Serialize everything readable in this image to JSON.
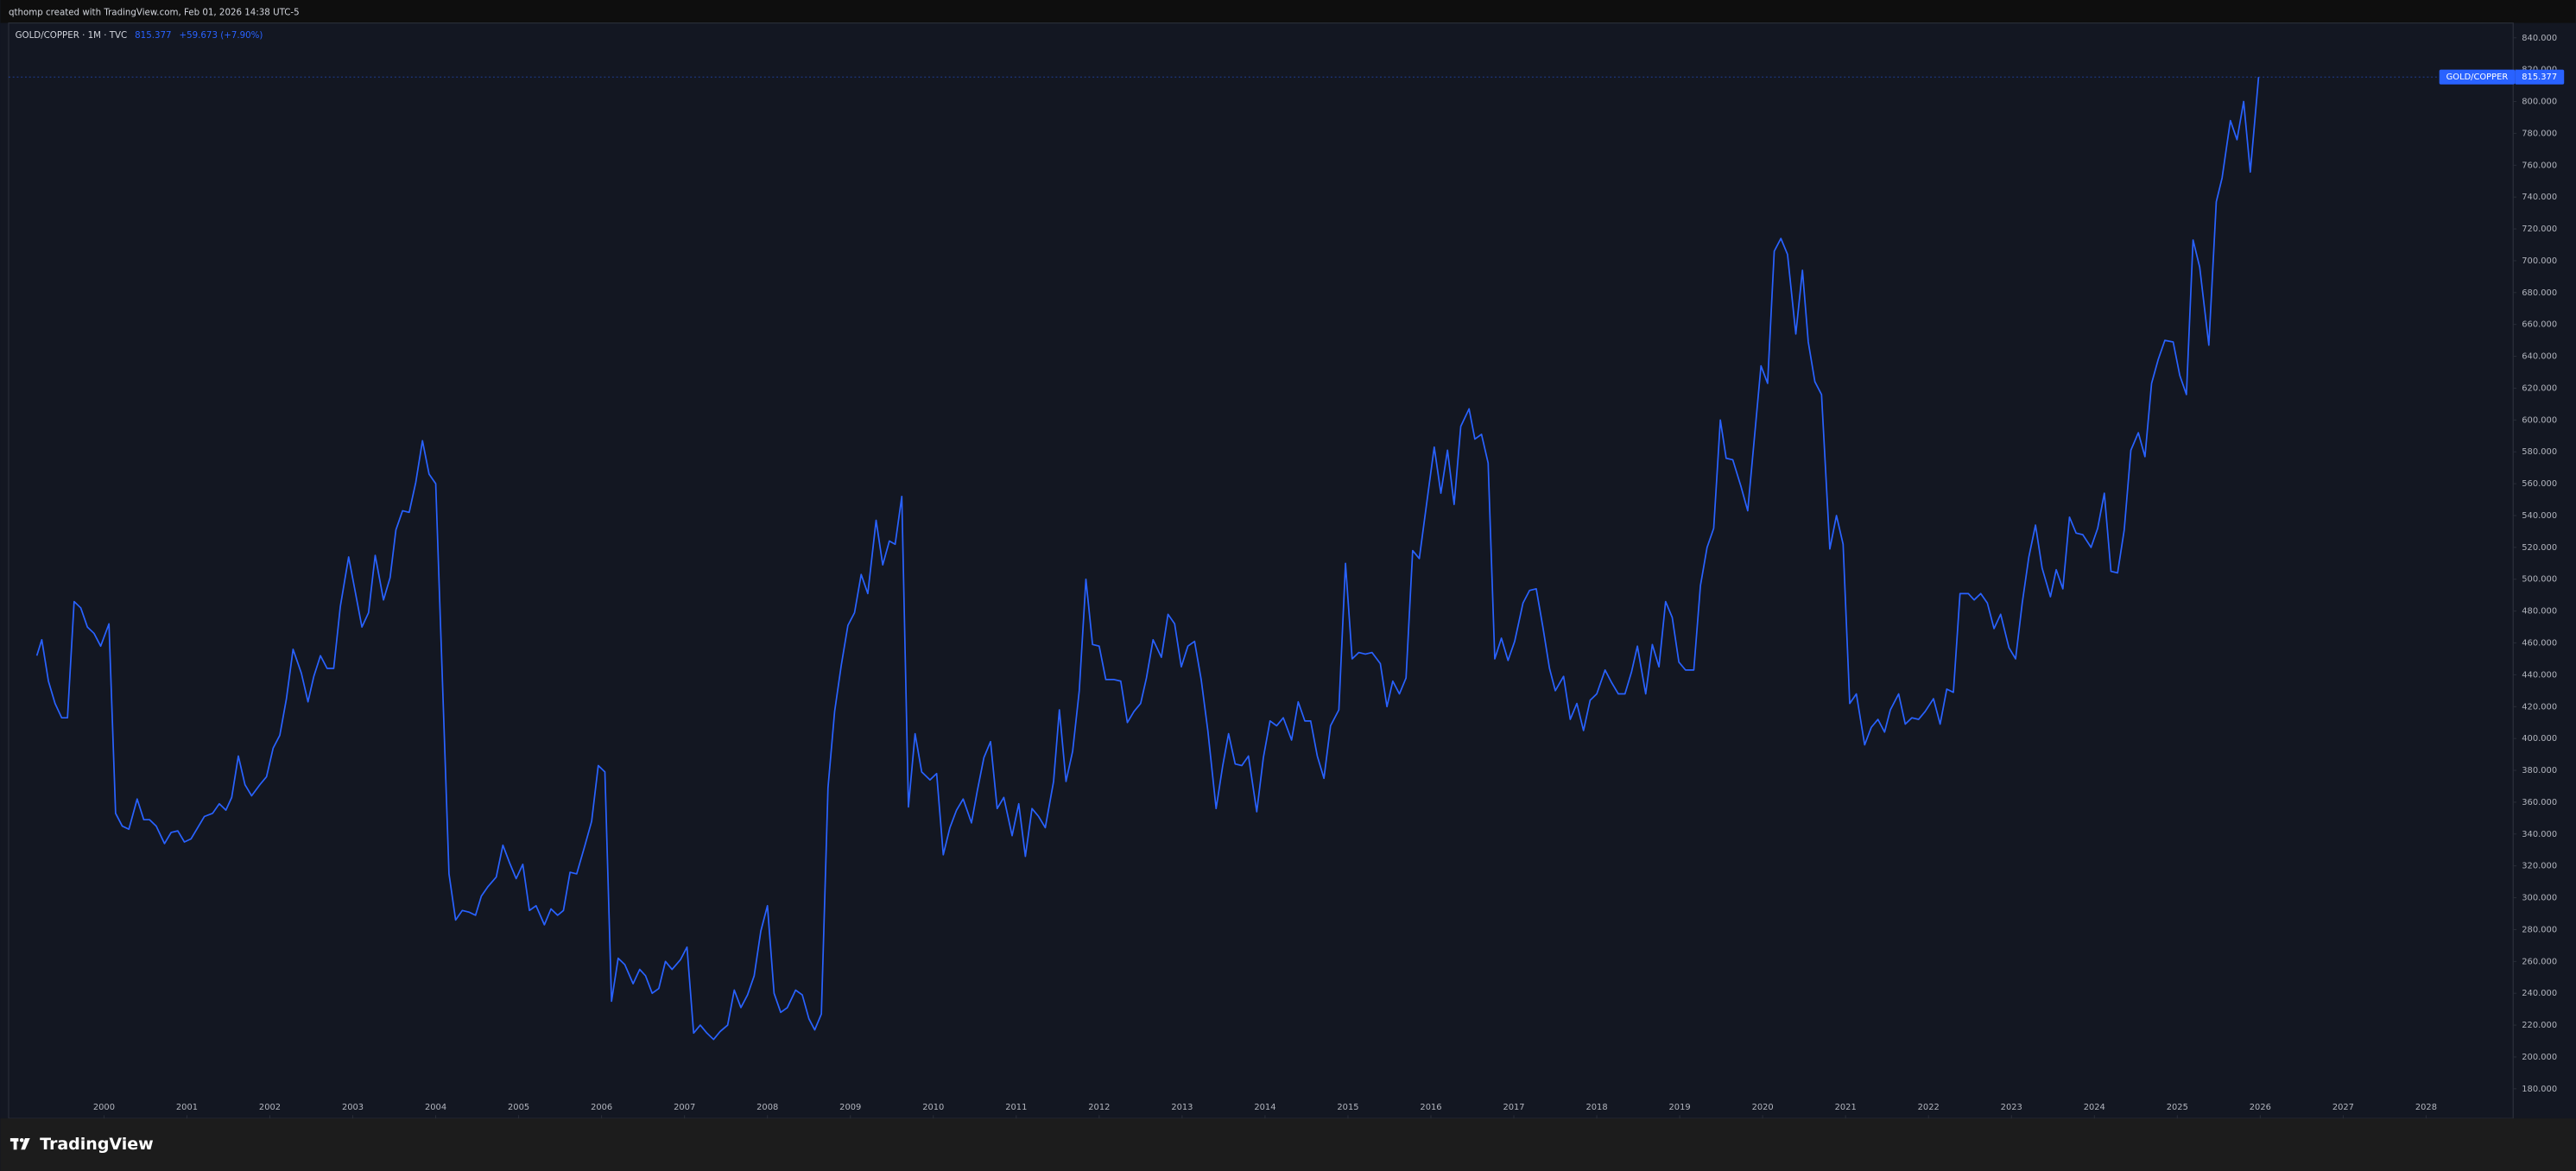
{
  "header": {
    "caption": "qthomp created with TradingView.com, Feb 01, 2026 14:38 UTC-5"
  },
  "legend": {
    "symbol": "GOLD/COPPER · 1M · TVC",
    "last": "815.377",
    "change": "+59.673 (+7.90%)"
  },
  "footer": {
    "brand": "TradingView"
  },
  "chart_data": {
    "type": "line",
    "grid": false,
    "xlim": [
      1998.85,
      2029.05
    ],
    "ylim": [
      161.4,
      849.3
    ],
    "xticks": [
      2000,
      2001,
      2002,
      2003,
      2004,
      2005,
      2006,
      2007,
      2008,
      2009,
      2010,
      2011,
      2012,
      2013,
      2014,
      2015,
      2016,
      2017,
      2018,
      2019,
      2020,
      2021,
      2022,
      2023,
      2024,
      2025,
      2026,
      2027,
      2028
    ],
    "yticks": [
      {
        "value": 180,
        "label": "180.000"
      },
      {
        "value": 200,
        "label": "200.000"
      },
      {
        "value": 220,
        "label": "220.000"
      },
      {
        "value": 240,
        "label": "240.000"
      },
      {
        "value": 260,
        "label": "260.000"
      },
      {
        "value": 280,
        "label": "280.000"
      },
      {
        "value": 300,
        "label": "300.000"
      },
      {
        "value": 320,
        "label": "320.000"
      },
      {
        "value": 340,
        "label": "340.000"
      },
      {
        "value": 360,
        "label": "360.000"
      },
      {
        "value": 380,
        "label": "380.000"
      },
      {
        "value": 400,
        "label": "400.000"
      },
      {
        "value": 420,
        "label": "420.000"
      },
      {
        "value": 440,
        "label": "440.000"
      },
      {
        "value": 460,
        "label": "460.000"
      },
      {
        "value": 480,
        "label": "480.000"
      },
      {
        "value": 500,
        "label": "500.000"
      },
      {
        "value": 520,
        "label": "520.000"
      },
      {
        "value": 540,
        "label": "540.000"
      },
      {
        "value": 560,
        "label": "560.000"
      },
      {
        "value": 580,
        "label": "580.000"
      },
      {
        "value": 600,
        "label": "600.000"
      },
      {
        "value": 620,
        "label": "620.000"
      },
      {
        "value": 640,
        "label": "640.000"
      },
      {
        "value": 660,
        "label": "660.000"
      },
      {
        "value": 680,
        "label": "680.000"
      },
      {
        "value": 700,
        "label": "700.000"
      },
      {
        "value": 720,
        "label": "720.000"
      },
      {
        "value": 740,
        "label": "740.000"
      },
      {
        "value": 760,
        "label": "760.000"
      },
      {
        "value": 780,
        "label": "780.000"
      },
      {
        "value": 800,
        "label": "800.000"
      },
      {
        "value": 820,
        "label": "820.000"
      },
      {
        "value": 840,
        "label": "840.000"
      }
    ],
    "x": [
      1999.19,
      1999.25,
      1999.33,
      1999.41,
      1999.49,
      1999.56,
      1999.64,
      1999.72,
      1999.8,
      1999.88,
      1999.96,
      2000.06,
      2000.14,
      2000.22,
      2000.3,
      2000.4,
      2000.48,
      2000.55,
      2000.63,
      2000.73,
      2000.81,
      2000.89,
      2000.97,
      2001.05,
      2001.13,
      2001.21,
      2001.31,
      2001.39,
      2001.47,
      2001.54,
      2001.62,
      2001.7,
      2001.78,
      2001.88,
      2001.96,
      2002.04,
      2002.12,
      2002.2,
      2002.28,
      2002.38,
      2002.46,
      2002.53,
      2002.61,
      2002.69,
      2002.77,
      2002.85,
      2002.95,
      2003.03,
      2003.11,
      2003.19,
      2003.27,
      2003.37,
      2003.45,
      2003.52,
      2003.6,
      2003.68,
      2003.76,
      2003.84,
      2003.92,
      2004.0,
      2004.16,
      2004.24,
      2004.32,
      2004.4,
      2004.48,
      2004.55,
      2004.63,
      2004.73,
      2004.81,
      2004.89,
      2004.97,
      2005.05,
      2005.13,
      2005.21,
      2005.31,
      2005.39,
      2005.47,
      2005.54,
      2005.62,
      2005.7,
      2005.8,
      2005.88,
      2005.96,
      2006.04,
      2006.12,
      2006.2,
      2006.28,
      2006.38,
      2006.46,
      2006.53,
      2006.61,
      2006.69,
      2006.77,
      2006.85,
      2006.95,
      2007.03,
      2007.11,
      2007.19,
      2007.27,
      2007.35,
      2007.43,
      2007.52,
      2007.6,
      2007.68,
      2007.76,
      2007.84,
      2007.92,
      2008.0,
      2008.08,
      2008.16,
      2008.24,
      2008.34,
      2008.42,
      2008.5,
      2008.57,
      2008.65,
      2008.73,
      2008.81,
      2008.89,
      2008.97,
      2009.05,
      2009.13,
      2009.21,
      2009.31,
      2009.39,
      2009.47,
      2009.54,
      2009.62,
      2009.7,
      2009.78,
      2009.86,
      2009.96,
      2010.04,
      2010.12,
      2010.2,
      2010.28,
      2010.36,
      2010.46,
      2010.53,
      2010.61,
      2010.69,
      2010.77,
      2010.85,
      2010.95,
      2011.03,
      2011.11,
      2011.19,
      2011.27,
      2011.35,
      2011.45,
      2011.52,
      2011.6,
      2011.68,
      2011.76,
      2011.84,
      2011.92,
      2012.0,
      2012.08,
      2012.18,
      2012.26,
      2012.34,
      2012.42,
      2012.5,
      2012.57,
      2012.65,
      2012.75,
      2012.83,
      2012.91,
      2012.99,
      2013.07,
      2013.15,
      2013.23,
      2013.31,
      2013.41,
      2013.49,
      2013.56,
      2013.64,
      2013.72,
      2013.8,
      2013.9,
      2013.98,
      2014.06,
      2014.14,
      2014.22,
      2014.32,
      2014.4,
      2014.48,
      2014.55,
      2014.63,
      2014.71,
      2014.79,
      2014.89,
      2014.97,
      2015.05,
      2015.13,
      2015.21,
      2015.29,
      2015.39,
      2015.47,
      2015.54,
      2015.62,
      2015.7,
      2015.78,
      2015.86,
      2015.96,
      2016.04,
      2016.12,
      2016.2,
      2016.28,
      2016.36,
      2016.46,
      2016.53,
      2016.61,
      2016.69,
      2016.77,
      2016.85,
      2016.93,
      2017.01,
      2017.11,
      2017.19,
      2017.27,
      2017.35,
      2017.43,
      2017.5,
      2017.6,
      2017.68,
      2017.76,
      2017.84,
      2017.92,
      2018.0,
      2018.1,
      2018.18,
      2018.26,
      2018.34,
      2018.42,
      2018.49,
      2018.59,
      2018.67,
      2018.75,
      2018.83,
      2018.91,
      2018.99,
      2019.07,
      2019.17,
      2019.25,
      2019.33,
      2019.41,
      2019.49,
      2019.56,
      2019.64,
      2019.74,
      2019.82,
      2019.98,
      2020.06,
      2020.14,
      2020.22,
      2020.3,
      2020.4,
      2020.48,
      2020.55,
      2020.63,
      2020.71,
      2020.81,
      2020.89,
      2020.97,
      2021.05,
      2021.13,
      2021.23,
      2021.31,
      2021.39,
      2021.47,
      2021.54,
      2021.64,
      2021.72,
      2021.8,
      2021.88,
      2021.96,
      2022.06,
      2022.14,
      2022.22,
      2022.3,
      2022.38,
      2022.48,
      2022.55,
      2022.63,
      2022.71,
      2022.79,
      2022.87,
      2022.97,
      2023.05,
      2023.13,
      2023.21,
      2023.29,
      2023.37,
      2023.47,
      2023.54,
      2023.62,
      2023.7,
      2023.78,
      2023.86,
      2023.96,
      2024.04,
      2024.12,
      2024.2,
      2024.28,
      2024.36,
      2024.44,
      2024.53,
      2024.61,
      2024.69,
      2024.77,
      2024.85,
      2024.95,
      2025.03,
      2025.11,
      2025.19,
      2025.27,
      2025.38,
      2025.47,
      2025.54,
      2025.64,
      2025.72,
      2025.8,
      2025.88,
      2025.98
    ],
    "series": [
      {
        "name": "GOLD/COPPER",
        "color": "#2962ff",
        "values": [
          452,
          462,
          436,
          422,
          413,
          413,
          486,
          482,
          470,
          466,
          458,
          472,
          353,
          345,
          343,
          362,
          349,
          349,
          345,
          334,
          341,
          342,
          335,
          337,
          344,
          351,
          353,
          359,
          355,
          363,
          389,
          371,
          364,
          371,
          376,
          394,
          402,
          425,
          456,
          441,
          423,
          439,
          452,
          444,
          444,
          483,
          514,
          492,
          470,
          479,
          515,
          487,
          501,
          531,
          543,
          542,
          561,
          587,
          566,
          560,
          315,
          286,
          292,
          291,
          289,
          301,
          307,
          313,
          333,
          322,
          312,
          321,
          292,
          295,
          283,
          293,
          289,
          292,
          316,
          315,
          333,
          348,
          383,
          379,
          235,
          262,
          258,
          246,
          255,
          251,
          240,
          243,
          260,
          255,
          261,
          269,
          215,
          220,
          215,
          211,
          216,
          220,
          242,
          231,
          239,
          251,
          279,
          295,
          240,
          228,
          231,
          242,
          239,
          224,
          217,
          227,
          369,
          417,
          446,
          471,
          479,
          503,
          491,
          537,
          509,
          524,
          522,
          552,
          357,
          403,
          379,
          374,
          378,
          327,
          344,
          355,
          362,
          347,
          367,
          388,
          398,
          356,
          363,
          339,
          359,
          326,
          356,
          351,
          344,
          373,
          418,
          373,
          392,
          430,
          500,
          459,
          458,
          437,
          437,
          436,
          410,
          417,
          422,
          438,
          462,
          451,
          478,
          472,
          445,
          458,
          461,
          437,
          405,
          356,
          383,
          403,
          384,
          383,
          389,
          354,
          388,
          411,
          408,
          413,
          399,
          423,
          411,
          411,
          389,
          375,
          408,
          418,
          510,
          450,
          454,
          453,
          454,
          447,
          420,
          436,
          428,
          438,
          518,
          513,
          552,
          583,
          554,
          581,
          547,
          596,
          607,
          588,
          591,
          573,
          450,
          463,
          449,
          461,
          485,
          493,
          494,
          470,
          444,
          430,
          439,
          412,
          422,
          405,
          424,
          428,
          443,
          435,
          428,
          428,
          442,
          458,
          428,
          459,
          445,
          486,
          476,
          448,
          443,
          443,
          496,
          520,
          532,
          600,
          576,
          575,
          558,
          543,
          634,
          623,
          706,
          714,
          704,
          654,
          694,
          649,
          624,
          616,
          519,
          540,
          522,
          422,
          428,
          396,
          407,
          412,
          404,
          418,
          428,
          409,
          413,
          412,
          417,
          425,
          409,
          431,
          429,
          491,
          491,
          487,
          491,
          485,
          469,
          478,
          457,
          450,
          485,
          514,
          534,
          507,
          489,
          506,
          494,
          539,
          529,
          528,
          520,
          532,
          554,
          505,
          504,
          531,
          581,
          592,
          577,
          623,
          638,
          650,
          649,
          628,
          616,
          713,
          696,
          647,
          737,
          752,
          788,
          776,
          800,
          755.704,
          815.377
        ]
      }
    ]
  }
}
